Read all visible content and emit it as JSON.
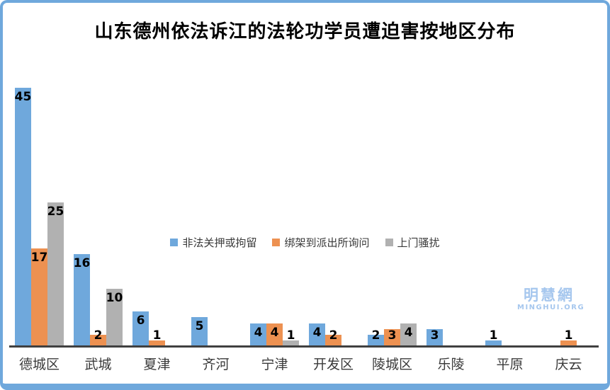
{
  "title": "山东德州依法诉江的法轮功学员遭迫害按地区分布",
  "watermark": {
    "line1": "明慧網",
    "line2": "MINGHUI.ORG"
  },
  "colors": {
    "frame": "#6FA8DC",
    "axis": "#404040",
    "watermark": "#A6C7EE",
    "series_blue": "#6FA8DC",
    "series_orange": "#ED9151",
    "series_gray": "#B1B1B1"
  },
  "chart_data": {
    "type": "bar",
    "title": "山东德州依法诉江的法轮功学员遭迫害按地区分布",
    "xlabel": "",
    "ylabel": "",
    "ylim": [
      0,
      45
    ],
    "grid": false,
    "legend_position": "center-middle",
    "data_labels": true,
    "categories": [
      "德城区",
      "武城",
      "夏津",
      "齐河",
      "宁津",
      "开发区",
      "陵城区",
      "乐陵",
      "平原",
      "庆云"
    ],
    "series": [
      {
        "name": "非法关押或拘留",
        "color": "#6FA8DC",
        "values": [
          45,
          16,
          6,
          5,
          4,
          4,
          2,
          3,
          1,
          null
        ]
      },
      {
        "name": "绑架到派出所询问",
        "color": "#ED9151",
        "values": [
          17,
          2,
          1,
          null,
          4,
          2,
          3,
          null,
          null,
          1
        ]
      },
      {
        "name": "上门骚扰",
        "color": "#B1B1B1",
        "values": [
          25,
          10,
          null,
          null,
          1,
          null,
          4,
          null,
          null,
          null
        ]
      }
    ]
  }
}
